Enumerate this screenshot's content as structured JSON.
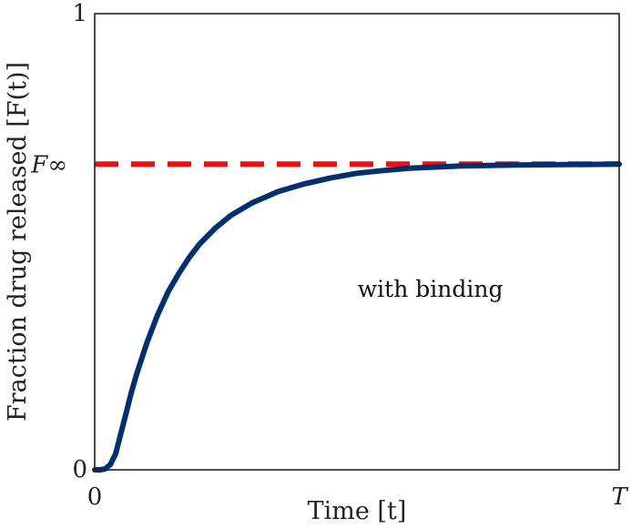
{
  "chart_data": {
    "type": "line",
    "xlabel": "Time [t]",
    "ylabel": "Fraction drug released [F(t)]",
    "xlim": [
      0,
      1
    ],
    "ylim": [
      0,
      1
    ],
    "x_ticks": [
      {
        "value": 0,
        "label": "0"
      },
      {
        "value": 1,
        "label": "T"
      }
    ],
    "y_ticks": [
      {
        "value": 0,
        "label": "0"
      },
      {
        "value": 0.67,
        "label": "F∞"
      },
      {
        "value": 1,
        "label": "1"
      }
    ],
    "grid": false,
    "series": [
      {
        "style": "solid",
        "color": "#00306e",
        "x": [
          0,
          0.01,
          0.02,
          0.03,
          0.04,
          0.05,
          0.06,
          0.07,
          0.08,
          0.09,
          0.1,
          0.12,
          0.14,
          0.16,
          0.18,
          0.2,
          0.23,
          0.26,
          0.3,
          0.35,
          0.4,
          0.45,
          0.5,
          0.55,
          0.6,
          0.7,
          0.8,
          0.9,
          1.0
        ],
        "y": [
          0,
          0,
          0.002,
          0.012,
          0.035,
          0.08,
          0.125,
          0.17,
          0.21,
          0.245,
          0.28,
          0.34,
          0.39,
          0.43,
          0.465,
          0.495,
          0.53,
          0.558,
          0.585,
          0.61,
          0.627,
          0.64,
          0.65,
          0.656,
          0.661,
          0.666,
          0.668,
          0.669,
          0.67
        ]
      },
      {
        "style": "dashed",
        "color": "#ee1111",
        "x": [
          0,
          1
        ],
        "y": [
          0.67,
          0.67
        ]
      }
    ],
    "annotations": [
      {
        "text": "with binding",
        "x": 0.64,
        "y": 0.395
      }
    ]
  }
}
